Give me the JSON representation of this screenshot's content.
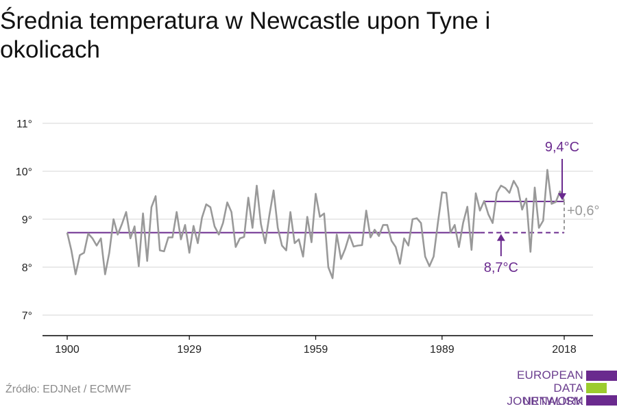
{
  "title": "Średnia temperatura w Newcastle upon Tyne i okolicach",
  "source": "Źródło: EDJNet / ECMWF",
  "logo": {
    "lines": [
      "EUROPEAN",
      "DATA JOURNALISM",
      "NETWORK"
    ],
    "colors": [
      "#6a2a8e",
      "#9ccc2e",
      "#6a2a8e"
    ]
  },
  "colors": {
    "series": "#999999",
    "accent": "#6a2a8e",
    "grid": "#dddddd",
    "axis": "#000000",
    "diff": "#999999"
  },
  "chart_data": {
    "type": "line",
    "title": "Średnia temperatura w Newcastle upon Tyne i okolicach",
    "xlabel": "",
    "ylabel": "",
    "xlim": [
      1900,
      2019
    ],
    "ylim": [
      6.6,
      11.3
    ],
    "x_ticks": [
      1900,
      1929,
      1959,
      1989,
      2018
    ],
    "y_ticks": [
      7,
      8,
      9,
      10,
      11
    ],
    "y_tick_labels": [
      "7°",
      "8°",
      "9°",
      "10°",
      "11°"
    ],
    "grid": "horizontal",
    "series": [
      {
        "x": [
          1900,
          1901,
          1902,
          1903,
          1904,
          1905,
          1906,
          1907,
          1908,
          1909,
          1910,
          1911,
          1912,
          1913,
          1914,
          1915,
          1916,
          1917,
          1918,
          1919,
          1920,
          1921,
          1922,
          1923,
          1924,
          1925,
          1926,
          1927,
          1928,
          1929,
          1930,
          1931,
          1932,
          1933,
          1934,
          1935,
          1936,
          1937,
          1938,
          1939,
          1940,
          1941,
          1942,
          1943,
          1944,
          1945,
          1946,
          1947,
          1948,
          1949,
          1950,
          1951,
          1952,
          1953,
          1954,
          1955,
          1956,
          1957,
          1958,
          1959,
          1960,
          1961,
          1962,
          1963,
          1964,
          1965,
          1966,
          1967,
          1968,
          1969,
          1970,
          1971,
          1972,
          1973,
          1974,
          1975,
          1976,
          1977,
          1978,
          1979,
          1980,
          1981,
          1982,
          1983,
          1984,
          1985,
          1986,
          1987,
          1988,
          1989,
          1990,
          1991,
          1992,
          1993,
          1994,
          1995,
          1996,
          1997,
          1998,
          1999,
          2000,
          2001,
          2002,
          2003,
          2004,
          2005,
          2006,
          2007,
          2008,
          2009,
          2010,
          2011,
          2012,
          2013,
          2014,
          2015,
          2016,
          2017,
          2018
        ],
        "values": [
          8.72,
          8.35,
          7.85,
          8.25,
          8.3,
          8.7,
          8.6,
          8.45,
          8.6,
          7.85,
          8.3,
          9.0,
          8.68,
          8.9,
          9.15,
          8.6,
          8.85,
          8.02,
          9.12,
          8.13,
          9.25,
          9.48,
          8.35,
          8.33,
          8.62,
          8.62,
          9.15,
          8.58,
          8.88,
          8.3,
          8.86,
          8.5,
          9.03,
          9.31,
          9.25,
          8.85,
          8.68,
          8.92,
          9.35,
          9.15,
          8.42,
          8.6,
          8.63,
          9.45,
          8.82,
          9.7,
          8.9,
          8.5,
          9.08,
          9.6,
          8.82,
          8.45,
          8.35,
          9.15,
          8.5,
          8.58,
          8.22,
          9.05,
          8.52,
          9.53,
          9.05,
          9.12,
          8.0,
          7.77,
          8.68,
          8.17,
          8.38,
          8.67,
          8.43,
          8.45,
          8.46,
          9.18,
          8.62,
          8.78,
          8.65,
          8.88,
          8.88,
          8.55,
          8.42,
          8.07,
          8.6,
          8.45,
          9.0,
          9.02,
          8.92,
          8.22,
          8.02,
          8.22,
          8.92,
          9.56,
          9.55,
          8.72,
          8.88,
          8.42,
          8.92,
          9.26,
          8.36,
          9.54,
          9.18,
          9.38,
          9.1,
          8.92,
          9.55,
          9.7,
          9.65,
          9.55,
          9.8,
          9.65,
          9.2,
          9.43,
          8.32,
          9.66,
          8.82,
          8.97,
          10.03,
          9.32,
          9.36,
          9.58,
          9.38
        ]
      }
    ],
    "reference_lines": [
      {
        "label": "8,7°C",
        "value": 8.72,
        "x_start": 1900,
        "x_end": 2018,
        "solid_until": 1998
      },
      {
        "label": "9,4°C",
        "value": 9.37,
        "x_start": 1999,
        "x_end": 2018
      }
    ],
    "annotations": {
      "difference": "+0,6°",
      "recent": "9,4°C",
      "baseline": "8,7°C"
    }
  }
}
